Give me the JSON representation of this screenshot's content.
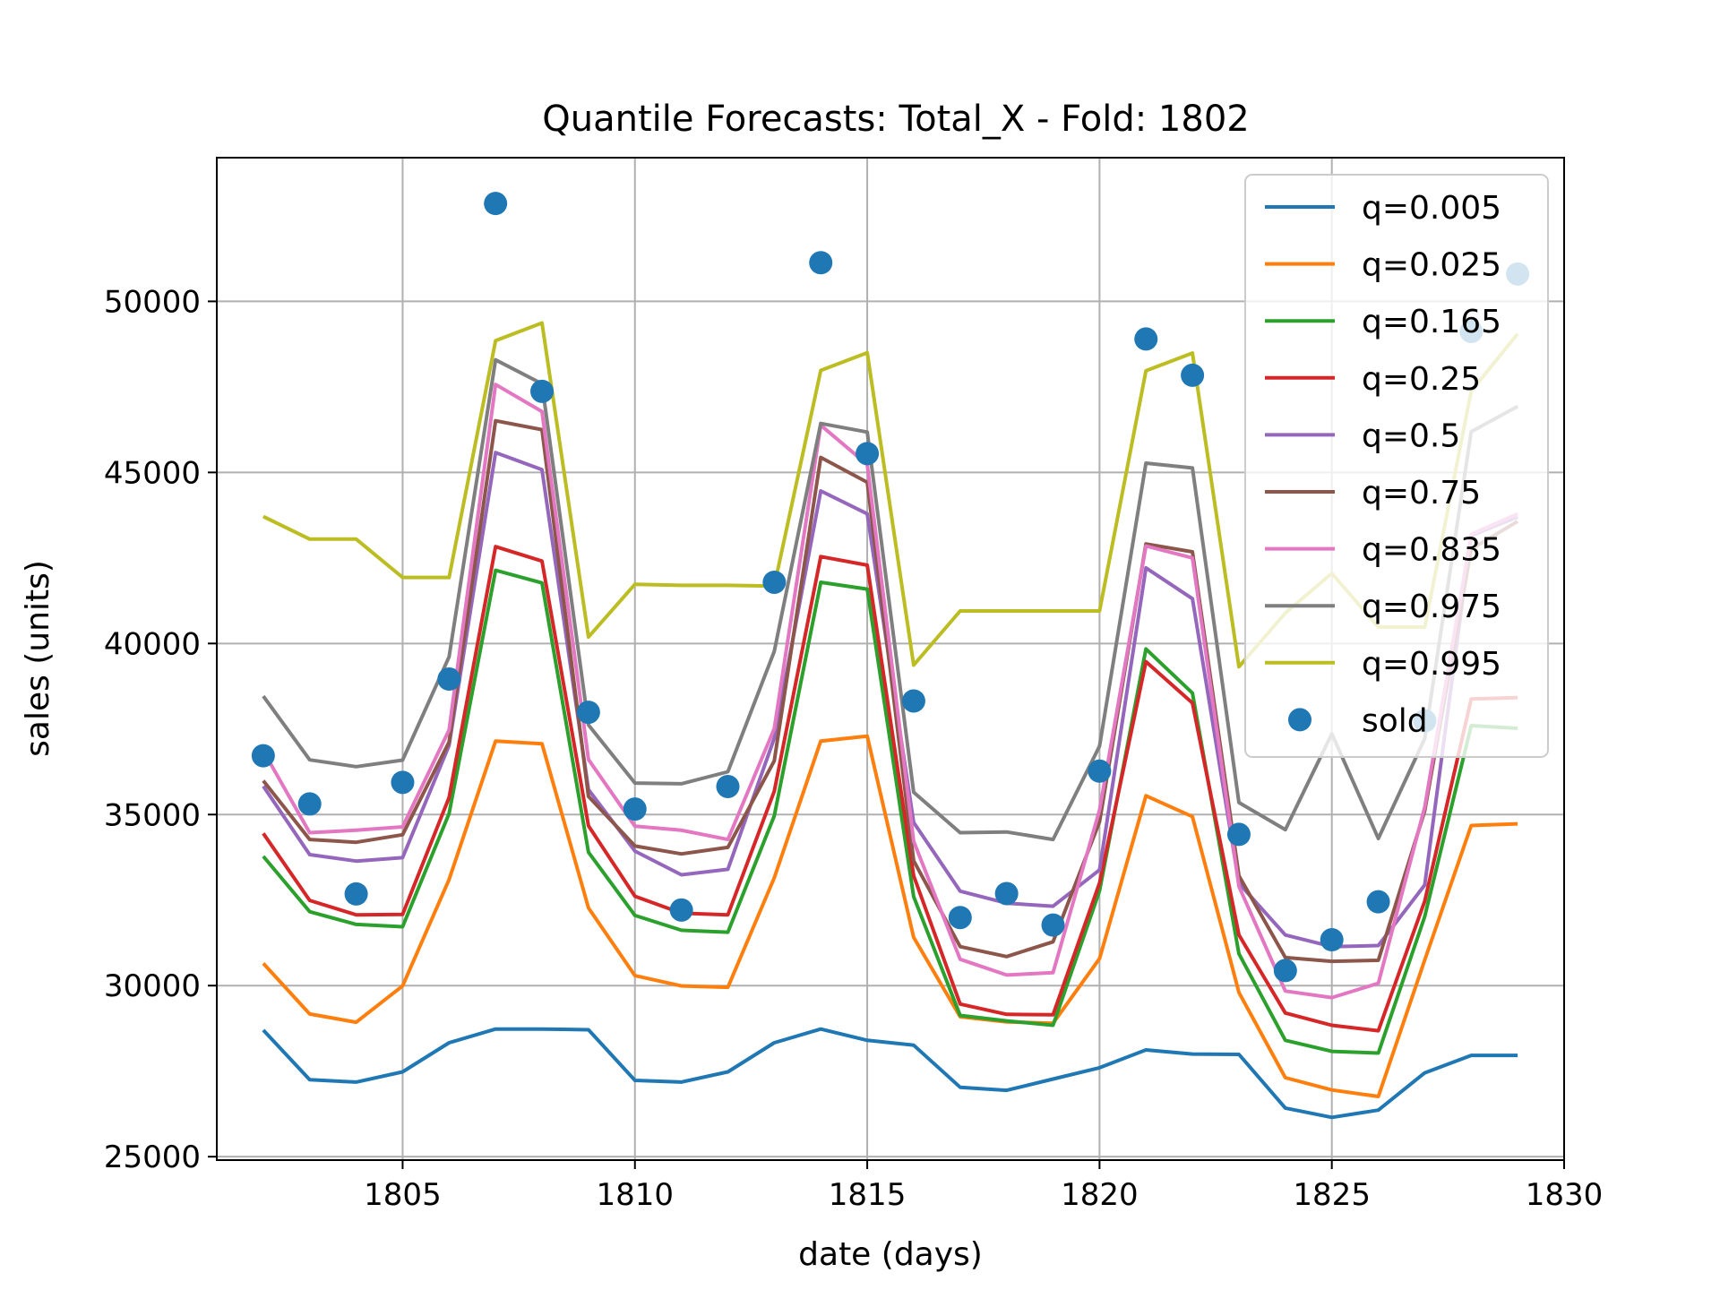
{
  "chart_data": {
    "type": "line",
    "title": "Quantile Forecasts: Total_X - Fold: 1802",
    "xlabel": "date (days)",
    "ylabel": "sales (units)",
    "xlim": [
      1801,
      1830
    ],
    "ylim": [
      24900,
      54200
    ],
    "xticks": [
      1805,
      1810,
      1815,
      1820,
      1825,
      1830
    ],
    "yticks": [
      25000,
      30000,
      35000,
      40000,
      45000,
      50000
    ],
    "grid": true,
    "legend_position": "top-right",
    "x": [
      1802,
      1803,
      1804,
      1805,
      1806,
      1807,
      1808,
      1809,
      1810,
      1811,
      1812,
      1813,
      1814,
      1815,
      1816,
      1817,
      1818,
      1819,
      1820,
      1821,
      1822,
      1823,
      1824,
      1825,
      1826,
      1827,
      1828,
      1829
    ],
    "series": [
      {
        "name": "q=0.005",
        "color": "#1f77b4",
        "values": [
          28700,
          27250,
          27180,
          27480,
          28330,
          28730,
          28730,
          28710,
          27230,
          27180,
          27480,
          28330,
          28730,
          28400,
          28260,
          27030,
          26940,
          27270,
          27600,
          28120,
          28000,
          27990,
          26420,
          26150,
          26360,
          27450,
          27960,
          27960
        ]
      },
      {
        "name": "q=0.025",
        "color": "#ff7f0e",
        "values": [
          30650,
          29170,
          28930,
          29990,
          33100,
          37150,
          37070,
          32270,
          30290,
          29990,
          29950,
          33150,
          37150,
          37290,
          31410,
          29090,
          28940,
          28900,
          30790,
          35550,
          34940,
          29800,
          27310,
          26950,
          26760,
          30750,
          34680,
          34730
        ]
      },
      {
        "name": "q=0.165",
        "color": "#2ca02c",
        "values": [
          33780,
          32160,
          31790,
          31720,
          35030,
          42140,
          41770,
          33900,
          32050,
          31620,
          31560,
          34960,
          41790,
          41590,
          32600,
          29130,
          28970,
          28840,
          32770,
          39840,
          38550,
          30930,
          28400,
          28080,
          28030,
          32020,
          37600,
          37520
        ]
      },
      {
        "name": "q=0.25",
        "color": "#d62728",
        "values": [
          34450,
          32490,
          32070,
          32080,
          35500,
          42830,
          42410,
          34670,
          32610,
          32120,
          32070,
          35680,
          42540,
          42290,
          33210,
          29460,
          29160,
          29150,
          33000,
          39470,
          38260,
          31480,
          29200,
          28840,
          28680,
          32470,
          38380,
          38420
        ]
      },
      {
        "name": "q=0.5",
        "color": "#9467bd",
        "values": [
          35830,
          33830,
          33640,
          33740,
          37020,
          45580,
          45080,
          35730,
          33930,
          33240,
          33400,
          37230,
          44460,
          43790,
          34770,
          32760,
          32410,
          32320,
          33380,
          42210,
          41310,
          32990,
          31480,
          31140,
          31170,
          32940,
          43150,
          43700
        ]
      },
      {
        "name": "q=0.75",
        "color": "#8c564b",
        "values": [
          35990,
          34270,
          34190,
          34410,
          37120,
          46510,
          46250,
          35530,
          34080,
          33850,
          34040,
          36570,
          45440,
          44710,
          33650,
          31140,
          30850,
          31280,
          34790,
          42910,
          42680,
          33210,
          30820,
          30710,
          30740,
          35110,
          42760,
          43570
        ]
      },
      {
        "name": "q=0.835",
        "color": "#e377c2",
        "values": [
          36860,
          34470,
          34540,
          34640,
          37470,
          47570,
          46780,
          36610,
          34660,
          34540,
          34270,
          37510,
          46380,
          45230,
          34220,
          30770,
          30310,
          30380,
          35130,
          42850,
          42500,
          32900,
          29840,
          29650,
          30070,
          35220,
          43190,
          43790
        ]
      },
      {
        "name": "q=0.975",
        "color": "#7f7f7f",
        "values": [
          38460,
          36600,
          36400,
          36590,
          39610,
          48290,
          47590,
          37620,
          35920,
          35900,
          36250,
          39770,
          46430,
          46180,
          35650,
          34470,
          34490,
          34270,
          37000,
          45270,
          45130,
          35350,
          34560,
          37360,
          34300,
          37220,
          46190,
          46930
        ]
      },
      {
        "name": "q=0.995",
        "color": "#bcbd22",
        "values": [
          43710,
          43050,
          43050,
          41930,
          41930,
          48850,
          49370,
          40190,
          41730,
          41700,
          41700,
          41680,
          47980,
          48500,
          39370,
          40950,
          40950,
          40950,
          40950,
          47970,
          48490,
          39320,
          40890,
          42050,
          40480,
          40480,
          47380,
          49050
        ]
      }
    ],
    "scatter": {
      "name": "sold",
      "color": "#1f77b4",
      "values": [
        36720,
        35310,
        32680,
        35940,
        38960,
        52860,
        47370,
        37990,
        35160,
        32210,
        35820,
        41790,
        51130,
        45550,
        38320,
        31990,
        32690,
        31770,
        36270,
        48900,
        47840,
        34420,
        30440,
        31340,
        32450,
        37740,
        49120,
        50800
      ]
    }
  }
}
